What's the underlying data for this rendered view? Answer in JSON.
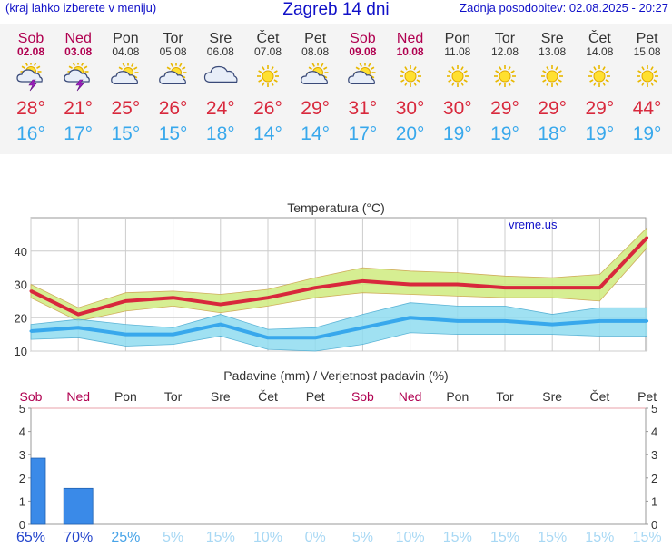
{
  "header": {
    "left_note": "(kraj lahko izberete v meniju)",
    "title": "Zagreb 14 dni",
    "updated": "Zadnja posodobitev: 02.08.2025 - 20:27"
  },
  "days": [
    {
      "name": "Sob",
      "date": "02.08",
      "weekend": true,
      "icon": "thunderstorm-icon",
      "max": "28°",
      "min": "16°",
      "precip_prob": "65%"
    },
    {
      "name": "Ned",
      "date": "03.08",
      "weekend": true,
      "icon": "thunderstorm-icon",
      "max": "21°",
      "min": "17°",
      "precip_prob": "70%"
    },
    {
      "name": "Pon",
      "date": "04.08",
      "weekend": false,
      "icon": "sun-cloud-icon",
      "max": "25°",
      "min": "15°",
      "precip_prob": "25%"
    },
    {
      "name": "Tor",
      "date": "05.08",
      "weekend": false,
      "icon": "sun-cloud-icon",
      "max": "26°",
      "min": "15°",
      "precip_prob": "5%"
    },
    {
      "name": "Sre",
      "date": "06.08",
      "weekend": false,
      "icon": "cloud-icon",
      "max": "24°",
      "min": "18°",
      "precip_prob": "15%"
    },
    {
      "name": "Čet",
      "date": "07.08",
      "weekend": false,
      "icon": "sun-icon",
      "max": "26°",
      "min": "14°",
      "precip_prob": "10%"
    },
    {
      "name": "Pet",
      "date": "08.08",
      "weekend": false,
      "icon": "sun-cloud-icon",
      "max": "29°",
      "min": "14°",
      "precip_prob": "0%"
    },
    {
      "name": "Sob",
      "date": "09.08",
      "weekend": true,
      "icon": "sun-cloud-icon",
      "max": "31°",
      "min": "17°",
      "precip_prob": "5%"
    },
    {
      "name": "Ned",
      "date": "10.08",
      "weekend": true,
      "icon": "sun-icon",
      "max": "30°",
      "min": "20°",
      "precip_prob": "10%"
    },
    {
      "name": "Pon",
      "date": "11.08",
      "weekend": false,
      "icon": "sun-icon",
      "max": "30°",
      "min": "19°",
      "precip_prob": "15%"
    },
    {
      "name": "Tor",
      "date": "12.08",
      "weekend": false,
      "icon": "sun-icon",
      "max": "29°",
      "min": "19°",
      "precip_prob": "15%"
    },
    {
      "name": "Sre",
      "date": "13.08",
      "weekend": false,
      "icon": "sun-icon",
      "max": "29°",
      "min": "18°",
      "precip_prob": "15%"
    },
    {
      "name": "Čet",
      "date": "14.08",
      "weekend": false,
      "icon": "sun-icon",
      "max": "29°",
      "min": "19°",
      "precip_prob": "15%"
    },
    {
      "name": "Pet",
      "date": "15.08",
      "weekend": false,
      "icon": "sun-icon",
      "max": "44°",
      "min": "19°",
      "precip_prob": "15%"
    }
  ],
  "chart_data": [
    {
      "type": "line",
      "title": "Temperatura (°C)",
      "watermark": "vreme.us",
      "x": [
        "Sob",
        "Ned",
        "Pon",
        "Tor",
        "Sre",
        "Čet",
        "Pet",
        "Sob",
        "Ned",
        "Pon",
        "Tor",
        "Sre",
        "Čet",
        "Pet"
      ],
      "ylim": [
        10,
        50
      ],
      "yticks": [
        10,
        20,
        30,
        40
      ],
      "grid": true,
      "series": [
        {
          "values": [
            28,
            21,
            25,
            26,
            24,
            26,
            29,
            31,
            30,
            30,
            29,
            29,
            29,
            44
          ],
          "color": "#d8283c",
          "band_low": [
            26,
            19,
            22,
            23.5,
            21.5,
            23.5,
            26,
            27.5,
            27,
            26.5,
            26,
            26,
            25,
            41
          ],
          "band_high": [
            30,
            23,
            27.5,
            28,
            27,
            28.5,
            32,
            35,
            34,
            33.5,
            32.5,
            32,
            33,
            47
          ]
        },
        {
          "values": [
            16,
            17,
            15,
            15,
            18,
            14,
            14,
            17,
            20,
            19,
            19,
            18,
            19,
            19
          ],
          "color": "#38a8ec",
          "band_low": [
            13.5,
            14,
            11.5,
            12,
            14.5,
            10.5,
            10,
            12,
            15.5,
            15,
            15,
            15,
            14.5,
            14.5
          ],
          "band_high": [
            18,
            19.5,
            18,
            17,
            21,
            16.5,
            17,
            21,
            24.5,
            23.5,
            23.5,
            21,
            23,
            23
          ]
        }
      ]
    },
    {
      "type": "bar",
      "title": "Padavine (mm) / Verjetnost padavin (%)",
      "categories": [
        "Sob",
        "Ned",
        "Pon",
        "Tor",
        "Sre",
        "Čet",
        "Pet",
        "Sob",
        "Ned",
        "Pon",
        "Tor",
        "Sre",
        "Čet",
        "Pet"
      ],
      "values": [
        2.85,
        1.55,
        0,
        0,
        0,
        0,
        0,
        0,
        0,
        0,
        0,
        0,
        0,
        0
      ],
      "ylim": [
        0,
        5
      ],
      "yticks": [
        0,
        1,
        2,
        3,
        4,
        5
      ],
      "bar_color": "#3a8ae8",
      "prob_values": [
        65,
        70,
        25,
        5,
        15,
        10,
        0,
        5,
        10,
        15,
        15,
        15,
        15,
        15
      ],
      "prob_colors": {
        "strong": "#2244cc",
        "medium": "#48a4e8",
        "weak": "#a8d8f4"
      }
    }
  ]
}
